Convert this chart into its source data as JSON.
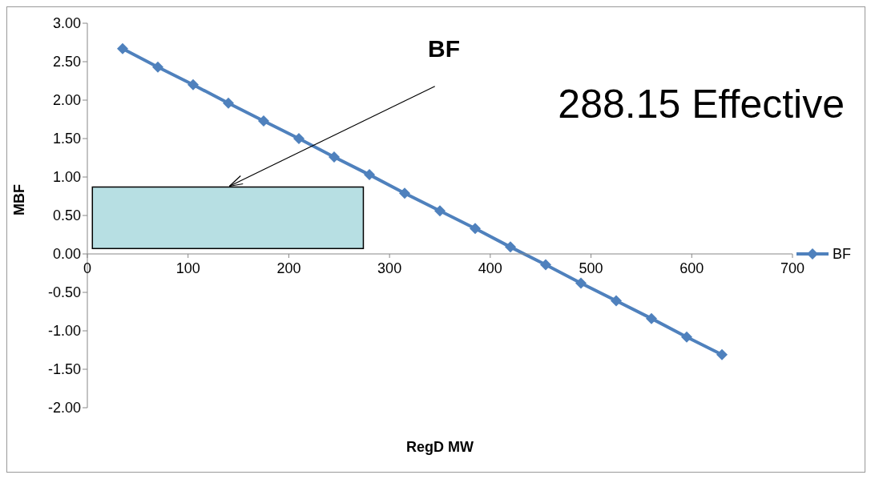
{
  "chart_data": {
    "type": "line",
    "title": "BF",
    "xlabel": "RegD MW",
    "ylabel": "MBF",
    "annotations": [
      "288.15 Effective"
    ],
    "x": [
      35,
      70,
      105,
      140,
      175,
      210,
      245,
      280,
      315,
      350,
      385,
      420,
      455,
      490,
      525,
      560,
      595,
      630
    ],
    "series": [
      {
        "name": "BF",
        "color": "#4f81bd",
        "values": [
          2.67,
          2.43,
          2.2,
          1.96,
          1.73,
          1.5,
          1.26,
          1.03,
          0.79,
          0.56,
          0.33,
          0.09,
          -0.14,
          -0.38,
          -0.61,
          -0.84,
          -1.08,
          -1.31
        ]
      }
    ],
    "xlim": [
      0,
      700
    ],
    "xticks": [
      0,
      100,
      200,
      300,
      400,
      500,
      600,
      700
    ],
    "ylim": [
      -2,
      3
    ],
    "yticks": [
      {
        "value": -2,
        "label": "-2.00"
      },
      {
        "value": -1.5,
        "label": "-1.50"
      },
      {
        "value": -1,
        "label": "-1.00"
      },
      {
        "value": -0.5,
        "label": "-0.50"
      },
      {
        "value": 0,
        "label": "0.00"
      },
      {
        "value": 0.5,
        "label": "0.50"
      },
      {
        "value": 1,
        "label": "1.00"
      },
      {
        "value": 1.5,
        "label": "1.50"
      },
      {
        "value": 2,
        "label": "2.00"
      },
      {
        "value": 2.5,
        "label": "2.50"
      },
      {
        "value": 3,
        "label": "3.00"
      }
    ],
    "grid": false,
    "legend": "right",
    "marker": "diamond",
    "line_style": "solid"
  }
}
